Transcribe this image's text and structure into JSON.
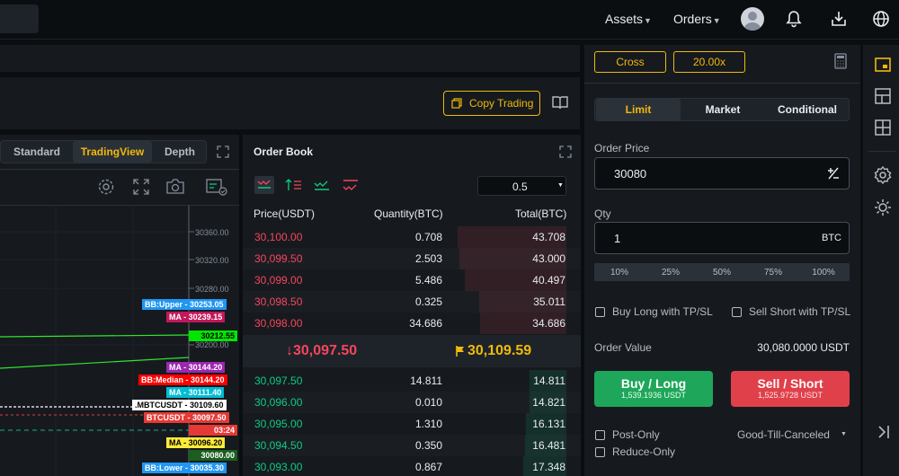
{
  "nav": {
    "assets_label": "Assets",
    "orders_label": "Orders"
  },
  "toolbar": {
    "copy_trading_label": "Copy Trading"
  },
  "chart": {
    "tabs": [
      "Standard",
      "TradingView",
      "Depth"
    ],
    "active_tab": "TradingView",
    "price_ticks": [
      "30360.00",
      "30320.00",
      "30280.00",
      "30200.00"
    ],
    "badges": [
      {
        "text": "BB:Upper - 30253.05",
        "color": "#2196f3"
      },
      {
        "text": "MA - 30239.15",
        "color": "#c2185b"
      },
      {
        "text": "30212.55",
        "color": "#00e600"
      },
      {
        "text": "MA - 30144.20",
        "color": "#9c27b0"
      },
      {
        "text": "BB:Median - 30144.20",
        "color": "#ff0000"
      },
      {
        "text": "MA - 30111.40",
        "color": "#00bcd4"
      },
      {
        "text": ".MBTCUSDT - 30109.60",
        "color": "#ffffff"
      },
      {
        "text": "BTCUSDT - 30097.50",
        "color": "#e53935"
      },
      {
        "text": "03:24",
        "color": "#e53935"
      },
      {
        "text": "MA - 30096.20",
        "color": "#ffeb3b"
      },
      {
        "text": "30080.00",
        "color": "#1b5e20"
      },
      {
        "text": "BB:Lower - 30035.30",
        "color": "#2196f3"
      }
    ],
    "partial_tick": "300"
  },
  "orderbook": {
    "title": "Order Book",
    "depth_select": "0.5",
    "headers": {
      "price": "Price(USDT)",
      "qty": "Quantity(BTC)",
      "total": "Total(BTC)"
    },
    "asks": [
      {
        "price": "30,100.00",
        "qty": "0.708",
        "total": "43.708",
        "depth": 1.0
      },
      {
        "price": "30,099.50",
        "qty": "2.503",
        "total": "43.000",
        "depth": 0.98
      },
      {
        "price": "30,099.00",
        "qty": "5.486",
        "total": "40.497",
        "depth": 0.93
      },
      {
        "price": "30,098.50",
        "qty": "0.325",
        "total": "35.011",
        "depth": 0.8
      },
      {
        "price": "30,098.00",
        "qty": "34.686",
        "total": "34.686",
        "depth": 0.79
      }
    ],
    "last_price": "↓30,097.50",
    "mark_price": "30,109.59",
    "bids": [
      {
        "price": "30,097.50",
        "qty": "14.811",
        "total": "14.811",
        "depth": 0.34
      },
      {
        "price": "30,096.00",
        "qty": "0.010",
        "total": "14.821",
        "depth": 0.34
      },
      {
        "price": "30,095.00",
        "qty": "1.310",
        "total": "16.131",
        "depth": 0.37
      },
      {
        "price": "30,094.50",
        "qty": "0.350",
        "total": "16.481",
        "depth": 0.38
      },
      {
        "price": "30,093.00",
        "qty": "0.867",
        "total": "17.348",
        "depth": 0.4
      }
    ]
  },
  "trade": {
    "margin_mode": "Cross",
    "leverage": "20.00x",
    "order_types": [
      "Limit",
      "Market",
      "Conditional"
    ],
    "active_type": "Limit",
    "price_label": "Order Price",
    "price_value": "30080",
    "qty_label": "Qty",
    "qty_value": "1",
    "qty_unit": "BTC",
    "percentages": [
      "10%",
      "25%",
      "50%",
      "75%",
      "100%"
    ],
    "buy_tpsl_label": "Buy Long with TP/SL",
    "sell_tpsl_label": "Sell Short with TP/SL",
    "order_value_label": "Order Value",
    "order_value": "30,080.0000 USDT",
    "buy_label": "Buy / Long",
    "buy_sub": "1,539.1936 USDT",
    "sell_label": "Sell / Short",
    "sell_sub": "1,525.9728 USDT",
    "post_only_label": "Post-Only",
    "reduce_only_label": "Reduce-Only",
    "tif_label": "Good-Till-Canceled"
  },
  "colors": {
    "accent": "#f0b90b",
    "buy": "#0ecb81",
    "sell": "#f6465d",
    "buy_button": "#1ea65a",
    "sell_button": "#e0404a"
  }
}
